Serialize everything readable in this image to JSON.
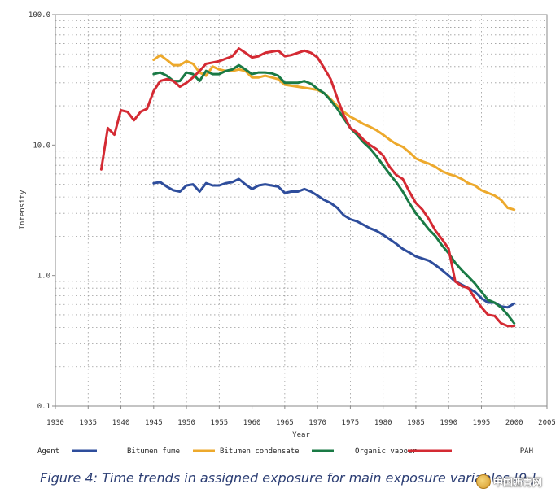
{
  "caption": "Figure 4: Time trends in assigned exposure for main exposure variables [9.]",
  "watermark": {
    "text": "中国沥青网",
    "icon": "watermark-logo-icon"
  },
  "chart_data": {
    "type": "line",
    "xlabel": "Year",
    "ylabel": "Intensity",
    "xlim": [
      1930,
      2005
    ],
    "ylim": [
      0.1,
      100.0
    ],
    "yscale": "log",
    "grid": true,
    "xticks": [
      "1930",
      "1935",
      "1940",
      "1945",
      "1950",
      "1955",
      "1960",
      "1965",
      "1970",
      "1975",
      "1980",
      "1985",
      "1990",
      "1995",
      "2000",
      "2005"
    ],
    "yticks": [
      {
        "value": 0.1,
        "label": "0.1"
      },
      {
        "value": 1.0,
        "label": "1.0"
      },
      {
        "value": 10.0,
        "label": "10.0"
      },
      {
        "value": 100.0,
        "label": "100.0"
      }
    ],
    "legend_title": "Agent",
    "legend_position": "bottom",
    "series": [
      {
        "name": "Bitumen fume",
        "color": "#2e4d9c",
        "points": [
          [
            1945,
            5.1
          ],
          [
            1946,
            5.2
          ],
          [
            1947,
            4.8
          ],
          [
            1948,
            4.5
          ],
          [
            1949,
            4.4
          ],
          [
            1950,
            4.9
          ],
          [
            1951,
            5.0
          ],
          [
            1952,
            4.4
          ],
          [
            1953,
            5.1
          ],
          [
            1954,
            4.9
          ],
          [
            1955,
            4.9
          ],
          [
            1956,
            5.1
          ],
          [
            1957,
            5.2
          ],
          [
            1958,
            5.5
          ],
          [
            1959,
            5.0
          ],
          [
            1960,
            4.6
          ],
          [
            1961,
            4.9
          ],
          [
            1962,
            5.0
          ],
          [
            1963,
            4.9
          ],
          [
            1964,
            4.8
          ],
          [
            1965,
            4.3
          ],
          [
            1966,
            4.4
          ],
          [
            1967,
            4.4
          ],
          [
            1968,
            4.6
          ],
          [
            1969,
            4.4
          ],
          [
            1970,
            4.1
          ],
          [
            1971,
            3.8
          ],
          [
            1972,
            3.6
          ],
          [
            1973,
            3.3
          ],
          [
            1974,
            2.9
          ],
          [
            1975,
            2.7
          ],
          [
            1976,
            2.6
          ],
          [
            1977,
            2.45
          ],
          [
            1978,
            2.3
          ],
          [
            1979,
            2.2
          ],
          [
            1980,
            2.05
          ],
          [
            1981,
            1.9
          ],
          [
            1982,
            1.75
          ],
          [
            1983,
            1.6
          ],
          [
            1984,
            1.5
          ],
          [
            1985,
            1.4
          ],
          [
            1986,
            1.35
          ],
          [
            1987,
            1.3
          ],
          [
            1988,
            1.2
          ],
          [
            1989,
            1.1
          ],
          [
            1990,
            1.0
          ],
          [
            1991,
            0.9
          ],
          [
            1992,
            0.85
          ],
          [
            1993,
            0.8
          ],
          [
            1994,
            0.75
          ],
          [
            1995,
            0.67
          ],
          [
            1996,
            0.62
          ],
          [
            1997,
            0.62
          ],
          [
            1998,
            0.58
          ],
          [
            1999,
            0.57
          ],
          [
            2000,
            0.61
          ]
        ]
      },
      {
        "name": "Bitumen condensate",
        "color": "#eda92c",
        "points": [
          [
            1945,
            45
          ],
          [
            1946,
            49
          ],
          [
            1947,
            45
          ],
          [
            1948,
            41
          ],
          [
            1949,
            41
          ],
          [
            1950,
            44
          ],
          [
            1951,
            42
          ],
          [
            1952,
            36
          ],
          [
            1953,
            34
          ],
          [
            1954,
            40
          ],
          [
            1955,
            38
          ],
          [
            1956,
            37
          ],
          [
            1957,
            37
          ],
          [
            1958,
            38
          ],
          [
            1959,
            37
          ],
          [
            1960,
            33
          ],
          [
            1961,
            33
          ],
          [
            1962,
            34
          ],
          [
            1963,
            33
          ],
          [
            1964,
            32
          ],
          [
            1965,
            29
          ],
          [
            1966,
            28.5
          ],
          [
            1967,
            28
          ],
          [
            1968,
            27.5
          ],
          [
            1969,
            27
          ],
          [
            1970,
            26.5
          ],
          [
            1971,
            25
          ],
          [
            1972,
            22.5
          ],
          [
            1973,
            20
          ],
          [
            1974,
            18
          ],
          [
            1975,
            16.5
          ],
          [
            1976,
            15.5
          ],
          [
            1977,
            14.5
          ],
          [
            1978,
            13.8
          ],
          [
            1979,
            13
          ],
          [
            1980,
            12
          ],
          [
            1981,
            11
          ],
          [
            1982,
            10.2
          ],
          [
            1983,
            9.7
          ],
          [
            1984,
            8.8
          ],
          [
            1985,
            7.9
          ],
          [
            1986,
            7.5
          ],
          [
            1987,
            7.2
          ],
          [
            1988,
            6.8
          ],
          [
            1989,
            6.3
          ],
          [
            1990,
            6.0
          ],
          [
            1991,
            5.8
          ],
          [
            1992,
            5.5
          ],
          [
            1993,
            5.1
          ],
          [
            1994,
            4.9
          ],
          [
            1995,
            4.5
          ],
          [
            1996,
            4.3
          ],
          [
            1997,
            4.1
          ],
          [
            1998,
            3.8
          ],
          [
            1999,
            3.3
          ],
          [
            2000,
            3.2
          ]
        ]
      },
      {
        "name": "Organic vapour",
        "color": "#1a7a45",
        "points": [
          [
            1945,
            35
          ],
          [
            1946,
            36
          ],
          [
            1947,
            34
          ],
          [
            1948,
            31
          ],
          [
            1949,
            31
          ],
          [
            1950,
            36
          ],
          [
            1951,
            35
          ],
          [
            1952,
            31
          ],
          [
            1953,
            37
          ],
          [
            1954,
            35
          ],
          [
            1955,
            35
          ],
          [
            1956,
            37
          ],
          [
            1957,
            38
          ],
          [
            1958,
            41
          ],
          [
            1959,
            38
          ],
          [
            1960,
            35
          ],
          [
            1961,
            36
          ],
          [
            1962,
            36
          ],
          [
            1963,
            35.5
          ],
          [
            1964,
            34
          ],
          [
            1965,
            30
          ],
          [
            1966,
            30
          ],
          [
            1967,
            30
          ],
          [
            1968,
            31
          ],
          [
            1969,
            29.5
          ],
          [
            1970,
            27
          ],
          [
            1971,
            25
          ],
          [
            1972,
            22
          ],
          [
            1973,
            19
          ],
          [
            1974,
            16
          ],
          [
            1975,
            13.5
          ],
          [
            1976,
            12
          ],
          [
            1977,
            10.5
          ],
          [
            1978,
            9.4
          ],
          [
            1979,
            8.2
          ],
          [
            1980,
            7.0
          ],
          [
            1981,
            6.0
          ],
          [
            1982,
            5.2
          ],
          [
            1983,
            4.4
          ],
          [
            1984,
            3.6
          ],
          [
            1985,
            3.0
          ],
          [
            1986,
            2.6
          ],
          [
            1987,
            2.25
          ],
          [
            1988,
            2.0
          ],
          [
            1989,
            1.7
          ],
          [
            1990,
            1.48
          ],
          [
            1991,
            1.25
          ],
          [
            1992,
            1.1
          ],
          [
            1993,
            0.98
          ],
          [
            1994,
            0.87
          ],
          [
            1995,
            0.75
          ],
          [
            1996,
            0.65
          ],
          [
            1997,
            0.62
          ],
          [
            1998,
            0.57
          ],
          [
            1999,
            0.5
          ],
          [
            2000,
            0.43
          ]
        ]
      },
      {
        "name": "PAH",
        "color": "#d42a33",
        "points": [
          [
            1937,
            6.5
          ],
          [
            1938,
            13.5
          ],
          [
            1939,
            12
          ],
          [
            1940,
            18.5
          ],
          [
            1941,
            18
          ],
          [
            1942,
            15.5
          ],
          [
            1943,
            18
          ],
          [
            1944,
            19
          ],
          [
            1945,
            26
          ],
          [
            1946,
            31
          ],
          [
            1947,
            32
          ],
          [
            1948,
            31
          ],
          [
            1949,
            28
          ],
          [
            1950,
            30
          ],
          [
            1951,
            33
          ],
          [
            1952,
            37
          ],
          [
            1953,
            42
          ],
          [
            1954,
            43
          ],
          [
            1955,
            44
          ],
          [
            1956,
            46
          ],
          [
            1957,
            48
          ],
          [
            1958,
            55
          ],
          [
            1959,
            51
          ],
          [
            1960,
            47
          ],
          [
            1961,
            48
          ],
          [
            1962,
            51
          ],
          [
            1963,
            52
          ],
          [
            1964,
            53
          ],
          [
            1965,
            48
          ],
          [
            1966,
            49
          ],
          [
            1967,
            51
          ],
          [
            1968,
            53
          ],
          [
            1969,
            51
          ],
          [
            1970,
            47
          ],
          [
            1971,
            39
          ],
          [
            1972,
            32
          ],
          [
            1973,
            23
          ],
          [
            1974,
            17
          ],
          [
            1975,
            13.5
          ],
          [
            1976,
            12.5
          ],
          [
            1977,
            11
          ],
          [
            1978,
            10
          ],
          [
            1979,
            9.3
          ],
          [
            1980,
            8.3
          ],
          [
            1981,
            6.8
          ],
          [
            1982,
            5.9
          ],
          [
            1983,
            5.5
          ],
          [
            1984,
            4.4
          ],
          [
            1985,
            3.6
          ],
          [
            1986,
            3.2
          ],
          [
            1987,
            2.7
          ],
          [
            1988,
            2.2
          ],
          [
            1989,
            1.9
          ],
          [
            1990,
            1.6
          ],
          [
            1991,
            0.9
          ],
          [
            1992,
            0.83
          ],
          [
            1993,
            0.8
          ],
          [
            1994,
            0.67
          ],
          [
            1995,
            0.57
          ],
          [
            1996,
            0.5
          ],
          [
            1997,
            0.49
          ],
          [
            1998,
            0.43
          ],
          [
            1999,
            0.41
          ],
          [
            2000,
            0.41
          ]
        ]
      }
    ]
  }
}
